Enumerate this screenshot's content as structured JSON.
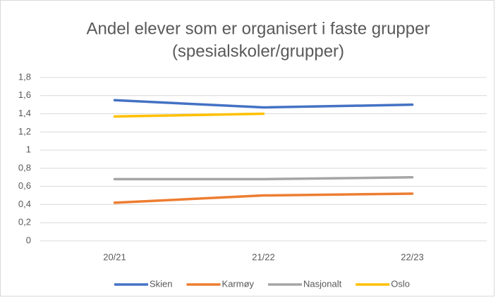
{
  "chart_data": {
    "type": "line",
    "title": [
      "Andel elever som er organisert i faste grupper",
      "(spesialskoler/grupper)"
    ],
    "categories": [
      "20/21",
      "21/22",
      "22/23"
    ],
    "series": [
      {
        "name": "Skien",
        "color": "#4472c4",
        "values": [
          1.55,
          1.47,
          1.5
        ]
      },
      {
        "name": "Karmøy",
        "color": "#ed7d31",
        "values": [
          0.42,
          0.5,
          0.52
        ]
      },
      {
        "name": "Nasjonalt",
        "color": "#a5a5a5",
        "values": [
          0.68,
          0.68,
          0.7
        ]
      },
      {
        "name": "Oslo",
        "color": "#ffc000",
        "values": [
          1.37,
          1.4,
          null
        ]
      }
    ],
    "ylim": [
      0,
      1.8
    ],
    "yticks": [
      0,
      {
        "value": 0.2,
        "label": "0,2"
      },
      {
        "value": 0.4,
        "label": "0,4"
      },
      {
        "value": 0.6,
        "label": "0,6"
      },
      {
        "value": 0.8,
        "label": "0,8"
      },
      1,
      {
        "value": 1.2,
        "label": "1,2"
      },
      {
        "value": 1.4,
        "label": "1,4"
      },
      {
        "value": 1.6,
        "label": "1,6"
      },
      {
        "value": 1.8,
        "label": "1,8"
      }
    ],
    "grid": true,
    "legend": "bottom"
  }
}
